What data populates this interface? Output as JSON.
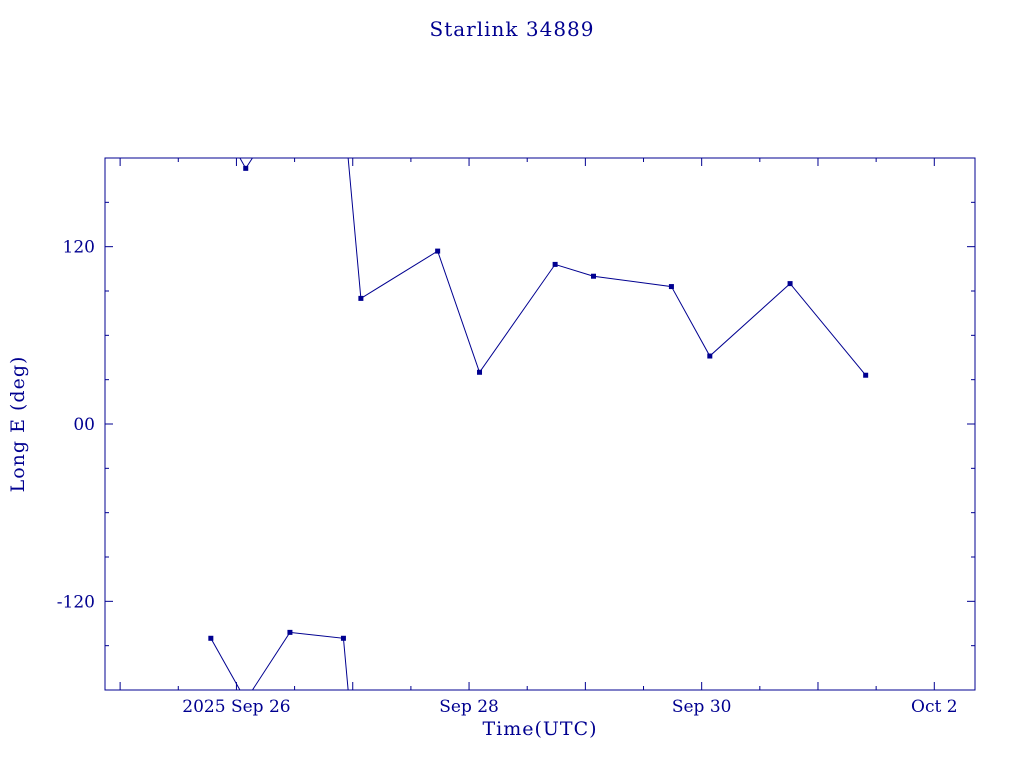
{
  "chart_data": {
    "type": "line",
    "title": "Starlink 34889",
    "xlabel": "Time(UTC)",
    "ylabel": "Long E (deg)",
    "line_color": "#000090",
    "background": "#ffffff",
    "marker": "filled-square",
    "grid": false,
    "legend": "none",
    "xlim": [
      24.87,
      32.35
    ],
    "ylim": [
      -180,
      180
    ],
    "x_minor_step": 0.5,
    "y_minor_step": 30,
    "wrap_degrees": 360,
    "xticks": [
      {
        "value": 26,
        "label": "2025 Sep 26"
      },
      {
        "value": 28,
        "label": "Sep 28"
      },
      {
        "value": 30,
        "label": "Sep 30"
      },
      {
        "value": 32,
        "label": "Oct 2"
      }
    ],
    "yticks": [
      {
        "value": 120,
        "label": "120"
      },
      {
        "value": 0,
        "label": "00"
      },
      {
        "value": -120,
        "label": "-120"
      }
    ],
    "points": [
      {
        "x": 25.78,
        "y": -145
      },
      {
        "x": 26.08,
        "y": 173
      },
      {
        "x": 26.46,
        "y": -141
      },
      {
        "x": 26.92,
        "y": -145
      },
      {
        "x": 27.07,
        "y": 85
      },
      {
        "x": 27.73,
        "y": 117
      },
      {
        "x": 28.09,
        "y": 35
      },
      {
        "x": 28.74,
        "y": 108
      },
      {
        "x": 29.07,
        "y": 100
      },
      {
        "x": 29.74,
        "y": 93
      },
      {
        "x": 30.07,
        "y": 46
      },
      {
        "x": 30.76,
        "y": 95
      },
      {
        "x": 31.41,
        "y": 33
      }
    ]
  }
}
